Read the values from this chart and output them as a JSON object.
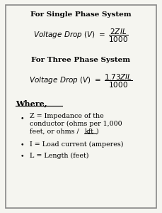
{
  "bg_color": "#f5f5f0",
  "border_color": "#888888",
  "title1": "For Single Phase System",
  "title2": "For Three Phase System",
  "where_label": "Where,",
  "bullet1_line1": "Z = Impedance of the",
  "bullet1_line2": "conductor (ohms per 1,000",
  "bullet1_line3_pre": "feet, or ohms / ",
  "bullet1_line3_kft": "kft",
  "bullet1_line3_post": ")",
  "bullet2": "I = Load current (amperes)",
  "bullet3": "L = Length (feet)"
}
